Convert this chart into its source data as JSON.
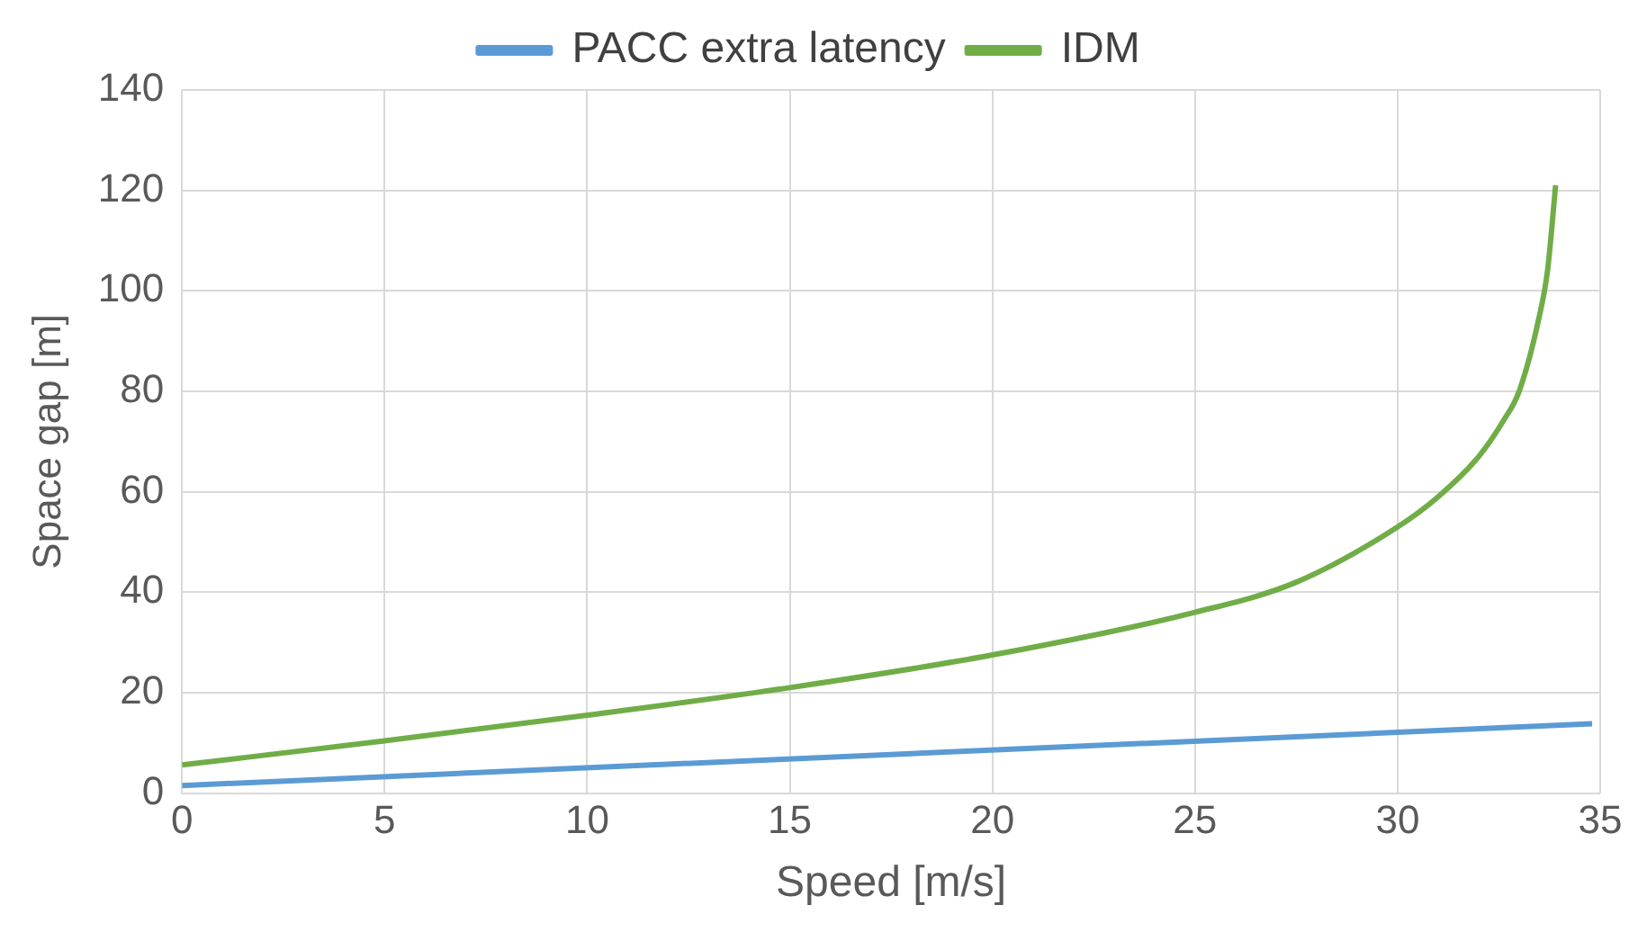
{
  "chart_data": {
    "type": "line",
    "xlabel": "Speed [m/s]",
    "ylabel": "Space gap [m]",
    "xlim": [
      0,
      35
    ],
    "xticks": [
      0,
      5,
      10,
      15,
      20,
      25,
      30,
      35
    ],
    "ylim": [
      0,
      140
    ],
    "yticks": [
      0,
      20,
      40,
      60,
      80,
      100,
      120,
      140
    ],
    "grid": true,
    "legend": "top",
    "marker": "none",
    "line_style": "solid",
    "series": [
      {
        "name": "PACC extra latency",
        "color": "#5b9bd5",
        "x": [
          0,
          34.8
        ],
        "values": [
          1.5,
          13.8
        ]
      },
      {
        "name": "IDM",
        "color": "#70ad47",
        "x": [
          0,
          5,
          10,
          15,
          20,
          25,
          27.5,
          30,
          31,
          32,
          32.6,
          33,
          33.5,
          33.7,
          33.9
        ],
        "values": [
          5.6,
          10.4,
          15.5,
          21,
          27.5,
          36,
          42,
          53,
          59,
          67,
          74,
          80,
          95,
          104,
          121
        ]
      }
    ]
  }
}
